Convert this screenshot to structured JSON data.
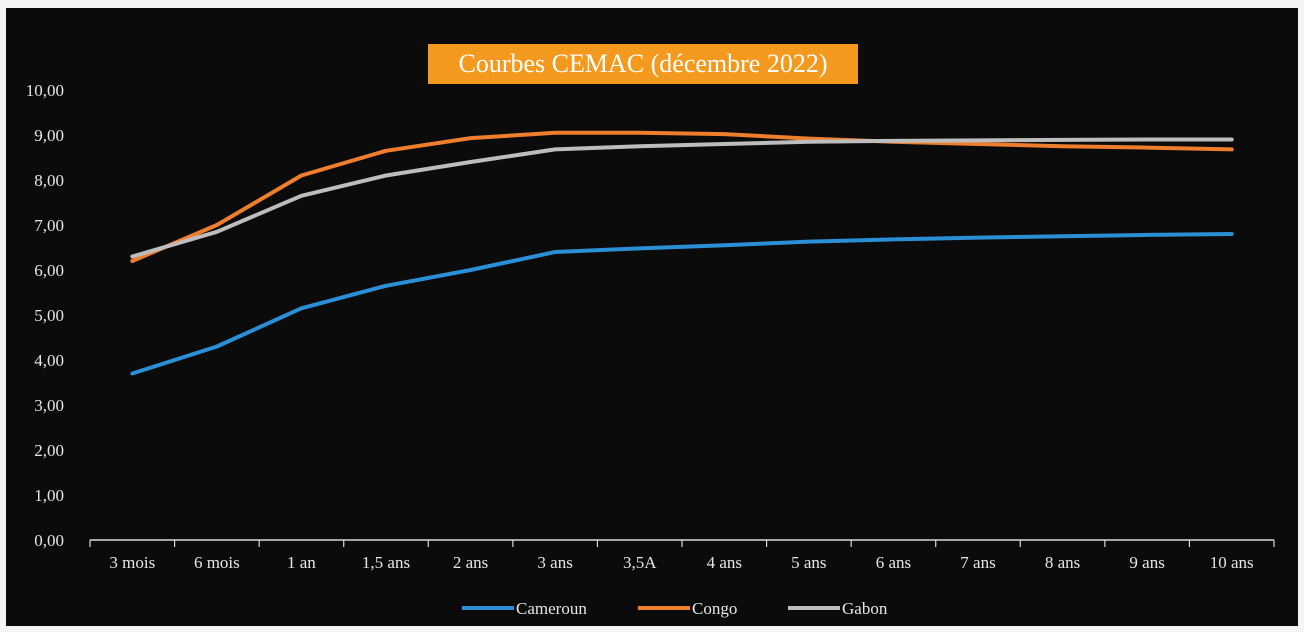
{
  "chart_data": {
    "type": "line",
    "title": "Courbes CEMAC (décembre 2022)",
    "categories": [
      "3 mois",
      "6 mois",
      "1 an",
      "1,5 ans",
      "2 ans",
      "3 ans",
      "3,5A",
      "4 ans",
      "5 ans",
      "6 ans",
      "7 ans",
      "8 ans",
      "9 ans",
      "10 ans"
    ],
    "y_ticks": [
      "0,00",
      "1,00",
      "2,00",
      "3,00",
      "4,00",
      "5,00",
      "6,00",
      "7,00",
      "8,00",
      "9,00",
      "10,00"
    ],
    "ylim": [
      0,
      10
    ],
    "grid": false,
    "legend_position": "bottom",
    "series": [
      {
        "name": "Cameroun",
        "color": "#2b8fd6",
        "values": [
          3.7,
          4.3,
          5.15,
          5.65,
          6.0,
          6.4,
          6.48,
          6.55,
          6.63,
          6.68,
          6.72,
          6.75,
          6.78,
          6.8
        ]
      },
      {
        "name": "Congo",
        "color": "#ee7d2e",
        "values": [
          6.2,
          7.0,
          8.1,
          8.65,
          8.93,
          9.05,
          9.05,
          9.02,
          8.92,
          8.85,
          8.8,
          8.75,
          8.72,
          8.68
        ]
      },
      {
        "name": "Gabon",
        "color": "#bdbdbd",
        "values": [
          6.3,
          6.85,
          7.65,
          8.1,
          8.4,
          8.68,
          8.75,
          8.8,
          8.85,
          8.87,
          8.88,
          8.89,
          8.9,
          8.9
        ]
      }
    ]
  }
}
